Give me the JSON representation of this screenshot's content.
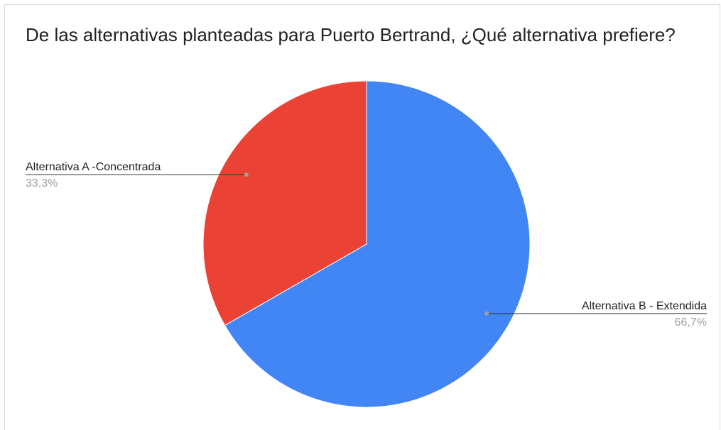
{
  "chart_data": {
    "type": "pie",
    "title": "De las alternativas planteadas para Puerto Bertrand, ¿Qué alternativa prefiere?",
    "slices": [
      {
        "label": "Alternativa B - Extendida",
        "value": 66.7,
        "percent_label": "66,7%",
        "color": "#4285F4"
      },
      {
        "label": "Alternativa A -Concentrada",
        "value": 33.3,
        "percent_label": "33,3%",
        "color": "#EA4335"
      }
    ],
    "start_angle_deg": 0,
    "direction": "clockwise",
    "legend": "none",
    "label_style": "outside-with-leader-lines"
  }
}
